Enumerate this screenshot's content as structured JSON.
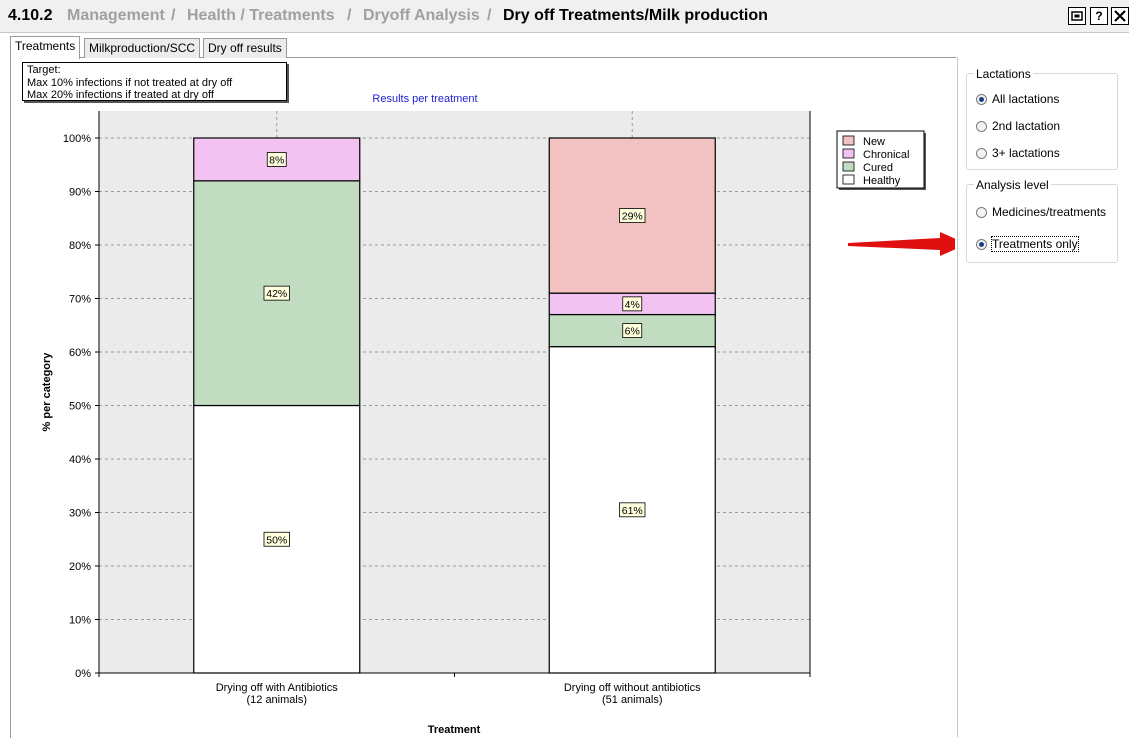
{
  "window": {
    "code": "4.10.2",
    "breadcrumb": [
      "Management",
      "Health / Treatments",
      "Dryoff Analysis"
    ],
    "title": "Dry off Treatments/Milk production",
    "buttons": {
      "restore": "restore-icon",
      "help": "?",
      "close": "close-icon"
    }
  },
  "tabs": [
    {
      "label": "Treatments",
      "active": true
    },
    {
      "label": "Milkproduction/SCC",
      "active": false
    },
    {
      "label": "Dry off results",
      "active": false
    }
  ],
  "target_note": {
    "line1": "Target:",
    "line2": "Max 10% infections if not treated at dry off",
    "line3": "Max 20% infections if treated at dry off"
  },
  "right_panel": {
    "lactations": {
      "title": "Lactations",
      "options": [
        {
          "label": "All lactations",
          "checked": true
        },
        {
          "label": "2nd lactation",
          "checked": false
        },
        {
          "label": "3+ lactations",
          "checked": false
        }
      ]
    },
    "analysis_level": {
      "title": "Analysis level",
      "options": [
        {
          "label": "Medicines/treatments",
          "checked": false
        },
        {
          "label": "Treatments only",
          "checked": true
        }
      ]
    }
  },
  "colors": {
    "New": "#f2c2c2",
    "Chronical": "#f2c2f2",
    "Cured": "#c2dcc2",
    "Healthy": "#ffffff",
    "plot_bg": "#ebebeb",
    "title_blue": "#1f1fd0",
    "arrow": "#e01010"
  },
  "chart_data": {
    "type": "bar",
    "stacked": true,
    "title": "Results per treatment",
    "xlabel": "Treatment",
    "ylabel": "% per category",
    "ylim": [
      0,
      100
    ],
    "yticks": [
      "0%",
      "10%",
      "20%",
      "30%",
      "40%",
      "50%",
      "60%",
      "70%",
      "80%",
      "90%",
      "100%"
    ],
    "categories": [
      [
        "Drying off with Antibiotics",
        "(12 animals)"
      ],
      [
        "Drying off without antibiotics",
        "(51 animals)"
      ]
    ],
    "series": [
      {
        "name": "Healthy",
        "values": [
          50,
          61
        ]
      },
      {
        "name": "Cured",
        "values": [
          42,
          6
        ]
      },
      {
        "name": "Chronical",
        "values": [
          8,
          4
        ]
      },
      {
        "name": "New",
        "values": [
          0,
          29
        ]
      }
    ],
    "legend_order": [
      "New",
      "Chronical",
      "Cured",
      "Healthy"
    ],
    "legend_position": "top-right",
    "grid": true
  }
}
